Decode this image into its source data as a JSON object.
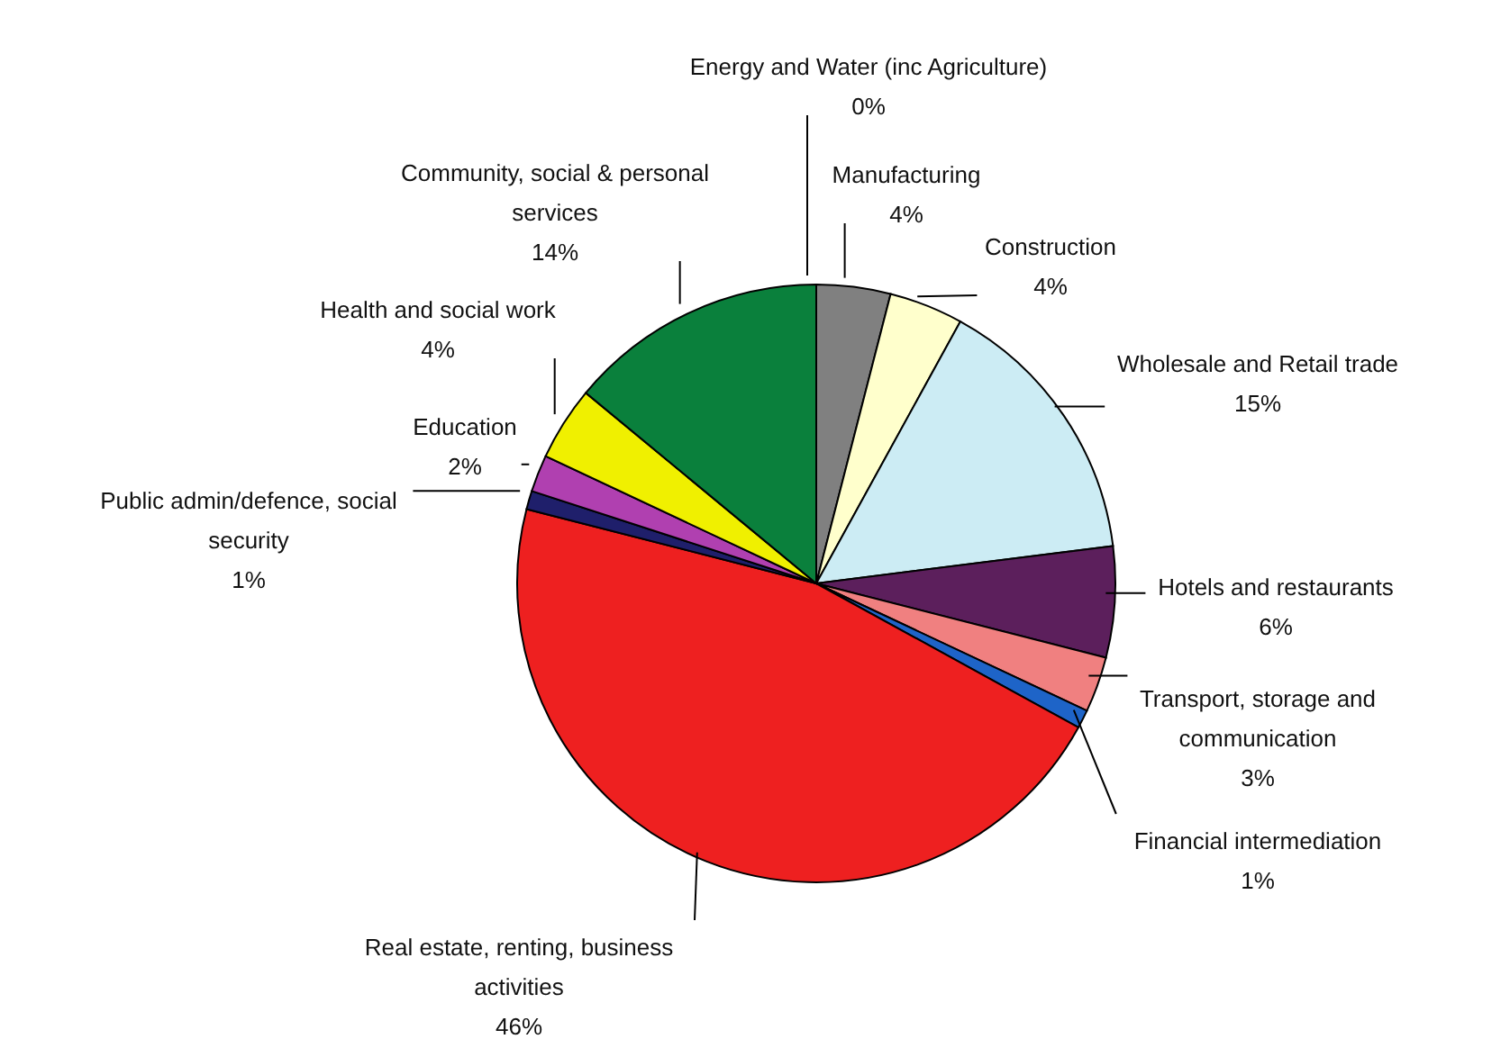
{
  "chart_data": {
    "type": "pie",
    "categories": [
      "Energy and Water (inc Agriculture)",
      "Manufacturing",
      "Construction",
      "Wholesale and Retail trade",
      "Hotels and restaurants",
      "Transport, storage and communication",
      "Financial intermediation",
      "Real estate, renting, business activities",
      "Public admin/defence, social security",
      "Education",
      "Health and social work",
      "Community, social & personal services"
    ],
    "values": [
      0,
      4,
      4,
      15,
      6,
      3,
      1,
      46,
      1,
      2,
      4,
      14
    ],
    "value_labels": [
      "0%",
      "4%",
      "4%",
      "15%",
      "6%",
      "3%",
      "1%",
      "46%",
      "1%",
      "2%",
      "4%",
      "14%"
    ],
    "colors": [
      "#000000",
      "#808080",
      "#ffffcc",
      "#ccecf4",
      "#5c1f5c",
      "#f08080",
      "#1e64c8",
      "#ee2020",
      "#1f1f6b",
      "#b040b0",
      "#f0f000",
      "#0a803c"
    ],
    "legend": false
  }
}
